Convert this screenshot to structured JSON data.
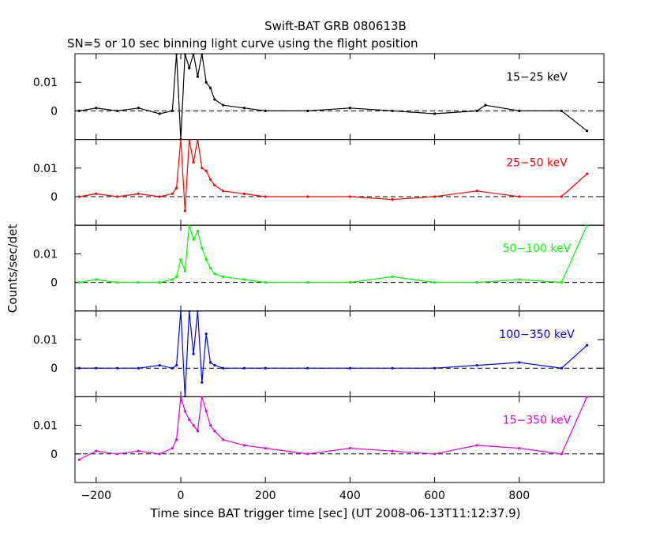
{
  "chart_data": {
    "type": "line",
    "title": "Swift-BAT GRB 080613B",
    "subtitle": "SN=5 or 10 sec binning light curve using the flight position",
    "xlabel": "Time since BAT trigger time [sec] (UT 2008-06-13T11:12:37.9)",
    "ylabel": "Counts/sec/det",
    "xlim": [
      -250,
      1000
    ],
    "ylim": [
      -0.01,
      0.02
    ],
    "x_ticks": [
      -200,
      0,
      200,
      400,
      600,
      800
    ],
    "x_tick_labels": [
      "−200",
      "0",
      "200",
      "400",
      "600",
      "800"
    ],
    "y_ticks": [
      0,
      0.01
    ],
    "y_tick_labels": [
      "0",
      "0.01"
    ],
    "zero_line": "dashed",
    "grid": false,
    "panels": [
      {
        "name": "15−25 keV",
        "color": "#000000",
        "x": [
          -240,
          -200,
          -150,
          -100,
          -50,
          -20,
          -10,
          0,
          10,
          20,
          30,
          40,
          50,
          60,
          70,
          80,
          100,
          150,
          200,
          300,
          400,
          500,
          600,
          700,
          720,
          800,
          900,
          960
        ],
        "y": [
          0.0,
          0.001,
          0.0,
          0.001,
          -0.001,
          0.0,
          0.02,
          -0.01,
          0.02,
          0.015,
          0.02,
          0.012,
          0.02,
          0.01,
          0.008,
          0.004,
          0.002,
          0.001,
          0.0,
          0.0,
          0.001,
          0.0,
          -0.001,
          0.0,
          0.002,
          0.0,
          0.0,
          -0.007
        ]
      },
      {
        "name": "25−50 keV",
        "color": "#ff0000",
        "x": [
          -240,
          -200,
          -150,
          -100,
          -50,
          -20,
          -10,
          0,
          10,
          20,
          30,
          40,
          50,
          60,
          70,
          80,
          100,
          150,
          200,
          300,
          400,
          500,
          600,
          700,
          800,
          900,
          960
        ],
        "y": [
          0.0,
          0.001,
          0.0,
          0.001,
          0.0,
          0.001,
          0.003,
          0.02,
          -0.005,
          0.02,
          0.012,
          0.02,
          0.01,
          0.009,
          0.006,
          0.004,
          0.002,
          0.001,
          0.0,
          0.0,
          0.0,
          -0.001,
          0.0,
          0.002,
          0.0,
          0.0,
          0.008
        ]
      },
      {
        "name": "50−100 keV",
        "color": "#00ff00",
        "x": [
          -240,
          -200,
          -150,
          -100,
          -50,
          -20,
          -10,
          0,
          10,
          20,
          30,
          40,
          50,
          60,
          70,
          80,
          100,
          150,
          200,
          300,
          400,
          500,
          600,
          700,
          800,
          900,
          960
        ],
        "y": [
          0.0,
          0.001,
          0.0,
          0.0,
          0.0,
          0.001,
          0.002,
          0.008,
          0.004,
          0.02,
          0.015,
          0.018,
          0.012,
          0.008,
          0.005,
          0.003,
          0.002,
          0.001,
          0.0,
          0.0,
          0.0,
          0.002,
          0.0,
          0.0,
          0.001,
          0.0,
          0.02
        ]
      },
      {
        "name": "100−350 keV",
        "color": "#0000ff",
        "x": [
          -240,
          -200,
          -150,
          -100,
          -50,
          -20,
          -10,
          0,
          10,
          20,
          30,
          40,
          50,
          60,
          70,
          80,
          100,
          150,
          200,
          300,
          400,
          500,
          600,
          700,
          800,
          900,
          960
        ],
        "y": [
          0.0,
          0.0,
          0.0,
          0.0,
          0.001,
          0.0,
          0.001,
          0.02,
          -0.01,
          0.02,
          0.005,
          0.02,
          -0.005,
          0.012,
          0.002,
          0.001,
          0.0,
          0.0,
          0.0,
          0.0,
          0.0,
          0.0,
          0.0,
          0.001,
          0.002,
          0.0,
          0.008
        ]
      },
      {
        "name": "15−350 keV",
        "color": "#e000e0",
        "x": [
          -240,
          -200,
          -150,
          -100,
          -50,
          -20,
          -10,
          0,
          10,
          20,
          30,
          40,
          50,
          60,
          70,
          80,
          100,
          150,
          200,
          300,
          400,
          500,
          600,
          700,
          800,
          900,
          960
        ],
        "y": [
          -0.002,
          0.001,
          0.0,
          0.001,
          0.0,
          0.002,
          0.005,
          0.02,
          0.015,
          0.012,
          0.01,
          0.008,
          0.02,
          0.015,
          0.01,
          0.008,
          0.005,
          0.003,
          0.002,
          0.0,
          0.002,
          0.001,
          0.0,
          0.003,
          0.002,
          0.0,
          0.02
        ]
      }
    ]
  }
}
